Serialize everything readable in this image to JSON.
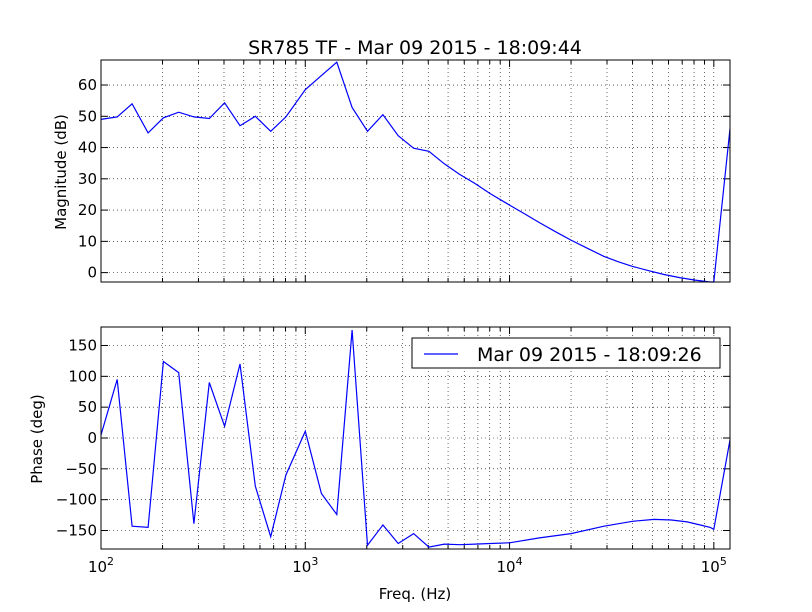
{
  "chart_data": [
    {
      "type": "line",
      "title": "SR785 TF - Mar 09 2015 - 18:09:44",
      "xlabel": "",
      "ylabel": "Magnitude (dB)",
      "xscale": "log",
      "xlim": [
        100,
        120000
      ],
      "ylim": [
        -3,
        68
      ],
      "grid": true,
      "x_tick_labels": [],
      "y_ticks": [
        0,
        10,
        20,
        30,
        40,
        50,
        60
      ],
      "y_tick_labels": [
        "0",
        "10",
        "20",
        "30",
        "40",
        "50",
        "60"
      ],
      "series": [
        {
          "color": "#0000ff",
          "x": [
            100,
            120,
            142,
            170,
            202,
            240,
            285,
            339,
            403,
            479,
            569,
            677,
            804,
            1000,
            1200,
            1426,
            1696,
            2017,
            2398,
            2851,
            3390,
            4030,
            4792,
            5697,
            6774,
            8054,
            10000,
            12000,
            14000,
            17000,
            20000,
            24000,
            29000,
            34000,
            40000,
            48000,
            57000,
            68000,
            81000,
            96000,
            100000,
            120000
          ],
          "y": [
            49,
            49.8,
            54,
            44.7,
            49.5,
            51.3,
            49.8,
            49.3,
            54.3,
            47,
            50,
            45.2,
            49.8,
            58.5,
            63,
            67.3,
            52.8,
            45.2,
            50.5,
            43.8,
            39.8,
            38.8,
            34.8,
            31.4,
            28.5,
            25.2,
            21.6,
            18.6,
            16,
            12.9,
            10.4,
            7.8,
            5.2,
            3.5,
            2,
            0.6,
            -0.6,
            -1.6,
            -2.4,
            -3,
            -3,
            46
          ]
        }
      ]
    },
    {
      "type": "line",
      "title": "",
      "xlabel": "Freq. (Hz)",
      "ylabel": "Phase (deg)",
      "xscale": "log",
      "xlim": [
        100,
        120000
      ],
      "ylim": [
        -180,
        180
      ],
      "grid": true,
      "x_ticks": [
        100,
        1000,
        10000,
        100000
      ],
      "x_tick_labels": [
        {
          "base": "10",
          "exp": "2"
        },
        {
          "base": "10",
          "exp": "3"
        },
        {
          "base": "10",
          "exp": "4"
        },
        {
          "base": "10",
          "exp": "5"
        }
      ],
      "y_ticks": [
        -150,
        -100,
        -50,
        0,
        50,
        100,
        150
      ],
      "y_tick_labels": [
        "−150",
        "−100",
        "−50",
        "0",
        "50",
        "100",
        "150"
      ],
      "legend": {
        "entries": [
          "Mar 09 2015 - 18:09:26"
        ],
        "placement": "top-right"
      },
      "series": [
        {
          "name": "Mar 09 2015 - 18:09:26",
          "color": "#0000ff",
          "x": [
            100,
            120,
            142,
            170,
            202,
            240,
            285,
            339,
            403,
            479,
            569,
            677,
            804,
            1000,
            1200,
            1426,
            1696,
            2017,
            2398,
            2851,
            3390,
            4030,
            4792,
            5697,
            6774,
            8054,
            10000,
            14000,
            20000,
            29000,
            40000,
            51000,
            62000,
            74000,
            86000,
            96000,
            100000,
            120000
          ],
          "y": [
            5,
            95,
            -143,
            -145,
            124,
            106,
            -139,
            90,
            19,
            120,
            -78,
            -160,
            -60,
            11,
            -90,
            -124,
            175,
            -174,
            -141,
            -171,
            -155,
            -177,
            -172,
            -173,
            -172,
            -171,
            -170,
            -162,
            -155,
            -143,
            -135,
            -132,
            -133,
            -136,
            -141,
            -145,
            -148,
            -3
          ]
        }
      ]
    }
  ]
}
